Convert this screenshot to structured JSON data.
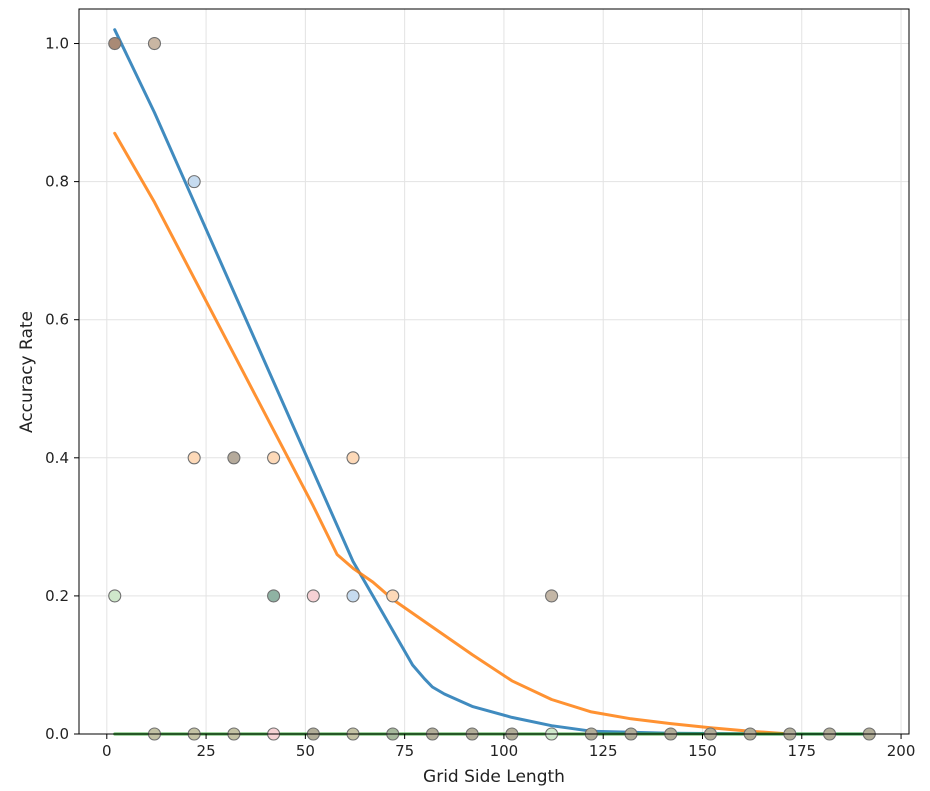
{
  "chart_data": {
    "type": "scatter",
    "title": "",
    "xlabel": "Grid Side Length",
    "ylabel": "Accuracy Rate",
    "xlim": [
      -7,
      202
    ],
    "ylim": [
      0,
      1.05
    ],
    "xticks": [
      0,
      25,
      50,
      75,
      100,
      125,
      150,
      175,
      200
    ],
    "yticks": [
      0.0,
      0.2,
      0.4,
      0.6,
      0.8,
      1.0
    ],
    "xtick_labels": [
      "0",
      "25",
      "50",
      "75",
      "100",
      "125",
      "150",
      "175",
      "200"
    ],
    "ytick_labels": [
      "0.0",
      "0.2",
      "0.4",
      "0.6",
      "0.8",
      "1.0"
    ],
    "grid": true,
    "scatter_points": [
      {
        "x": 2,
        "y": 1.0,
        "color": "#a98a75"
      },
      {
        "x": 12,
        "y": 1.0,
        "color": "#c9b6a3"
      },
      {
        "x": 22,
        "y": 0.8,
        "color": "#c6dbef"
      },
      {
        "x": 22,
        "y": 0.4,
        "color": "#fdd9b8"
      },
      {
        "x": 32,
        "y": 0.4,
        "color": "#b5aa9b"
      },
      {
        "x": 42,
        "y": 0.4,
        "color": "#fdd9b8"
      },
      {
        "x": 62,
        "y": 0.4,
        "color": "#fdd9b8"
      },
      {
        "x": 2,
        "y": 0.2,
        "color": "#cfe8cb"
      },
      {
        "x": 42,
        "y": 0.2,
        "color": "#8fb2a3"
      },
      {
        "x": 52,
        "y": 0.2,
        "color": "#f6d1d4"
      },
      {
        "x": 62,
        "y": 0.2,
        "color": "#c6dbef"
      },
      {
        "x": 72,
        "y": 0.2,
        "color": "#fdd9b8"
      },
      {
        "x": 112,
        "y": 0.2,
        "color": "#c3b6a6"
      },
      {
        "x": 12,
        "y": 0.0,
        "color": "#c4c2a4"
      },
      {
        "x": 22,
        "y": 0.0,
        "color": "#c4c2a4"
      },
      {
        "x": 32,
        "y": 0.0,
        "color": "#c4c2a4"
      },
      {
        "x": 42,
        "y": 0.0,
        "color": "#f6d1d4"
      },
      {
        "x": 52,
        "y": 0.0,
        "color": "#b1ad98"
      },
      {
        "x": 62,
        "y": 0.0,
        "color": "#c4c2a4"
      },
      {
        "x": 72,
        "y": 0.0,
        "color": "#a6b89c"
      },
      {
        "x": 82,
        "y": 0.0,
        "color": "#b1ad98"
      },
      {
        "x": 92,
        "y": 0.0,
        "color": "#b1ad98"
      },
      {
        "x": 102,
        "y": 0.0,
        "color": "#b1ad98"
      },
      {
        "x": 112,
        "y": 0.0,
        "color": "#cfe8cb"
      },
      {
        "x": 122,
        "y": 0.0,
        "color": "#b1ad98"
      },
      {
        "x": 132,
        "y": 0.0,
        "color": "#b1ad98"
      },
      {
        "x": 142,
        "y": 0.0,
        "color": "#b1ad98"
      },
      {
        "x": 152,
        "y": 0.0,
        "color": "#b1ad98"
      },
      {
        "x": 162,
        "y": 0.0,
        "color": "#b1ad98"
      },
      {
        "x": 172,
        "y": 0.0,
        "color": "#b1ad98"
      },
      {
        "x": 182,
        "y": 0.0,
        "color": "#b1ad98"
      },
      {
        "x": 192,
        "y": 0.0,
        "color": "#b1ad98"
      }
    ],
    "series": [
      {
        "color": "#1f77b4",
        "x": [
          2,
          12,
          22,
          32,
          42,
          52,
          62,
          67,
          72,
          77,
          80,
          82,
          85,
          92,
          102,
          112,
          122,
          142,
          172,
          192
        ],
        "y": [
          1.02,
          0.9,
          0.77,
          0.64,
          0.51,
          0.38,
          0.25,
          0.2,
          0.15,
          0.1,
          0.08,
          0.068,
          0.058,
          0.04,
          0.024,
          0.012,
          0.004,
          0.001,
          0.0,
          0.0
        ]
      },
      {
        "color": "#ff7f0e",
        "x": [
          2,
          12,
          22,
          32,
          42,
          52,
          58,
          62,
          67,
          72,
          82,
          92,
          102,
          112,
          122,
          132,
          142,
          152,
          162,
          172
        ],
        "y": [
          0.87,
          0.77,
          0.66,
          0.55,
          0.44,
          0.33,
          0.26,
          0.24,
          0.22,
          0.195,
          0.155,
          0.115,
          0.077,
          0.05,
          0.032,
          0.022,
          0.015,
          0.009,
          0.004,
          0.0
        ]
      },
      {
        "color": "#2ca02c",
        "x": [
          2,
          192
        ],
        "y": [
          0.0,
          0.0
        ]
      }
    ]
  }
}
